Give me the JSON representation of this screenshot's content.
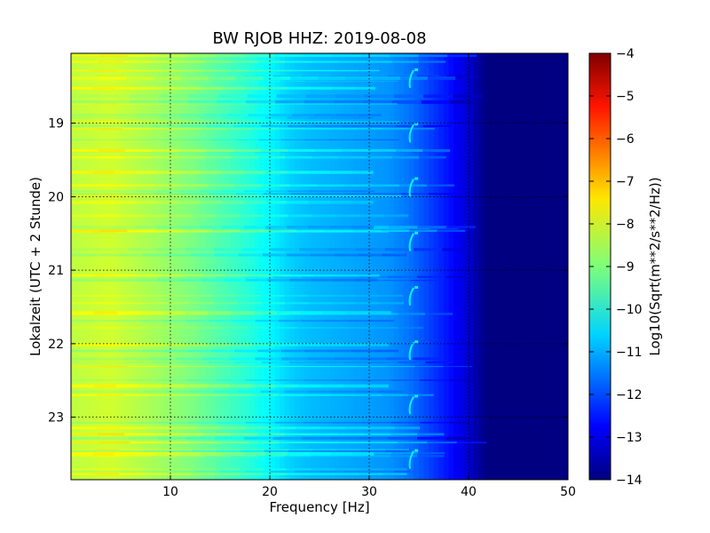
{
  "chart_data": {
    "type": "heatmap",
    "title": "BW RJOB HHZ: 2019-08-08",
    "xlabel": "Frequency [Hz]",
    "ylabel": "Lokalzeit (UTC + 2 Stunde)",
    "xlim": [
      0,
      50
    ],
    "ylim": [
      18.05,
      23.85
    ],
    "y_inverted": true,
    "x_ticks": [
      10,
      20,
      30,
      40,
      50
    ],
    "y_ticks": [
      19,
      20,
      21,
      22,
      23
    ],
    "grid": true,
    "colormap": "jet",
    "colorbar": {
      "label": "Log10(Sqrt(m**2/s**2/Hz))",
      "range": [
        -14,
        -4
      ],
      "ticks": [
        -4,
        -5,
        -6,
        -7,
        -8,
        -9,
        -10,
        -11,
        -12,
        -13,
        -14
      ]
    },
    "spectrum_profile": {
      "frequency_hz": [
        0,
        2,
        4,
        6,
        8,
        10,
        12,
        14,
        16,
        18,
        20,
        22,
        24,
        26,
        28,
        30,
        32,
        34,
        36,
        38,
        40,
        41,
        42,
        44,
        46,
        48,
        50
      ],
      "log10_psd": [
        -8.4,
        -8.3,
        -8.2,
        -8.4,
        -8.6,
        -8.8,
        -9.0,
        -9.3,
        -9.6,
        -9.9,
        -10.3,
        -10.7,
        -10.9,
        -11.0,
        -11.1,
        -11.2,
        -11.3,
        -11.6,
        -12.1,
        -12.6,
        -13.2,
        -13.7,
        -14.0,
        -14.0,
        -14.0,
        -14.0,
        -14.0
      ]
    },
    "annotations": [
      {
        "description": "narrow spectral line near 34 Hz",
        "frequency_hz": 34.2
      }
    ]
  },
  "colors": {
    "background": "#ffffff",
    "axes": "#000000",
    "grid": "#000000"
  }
}
